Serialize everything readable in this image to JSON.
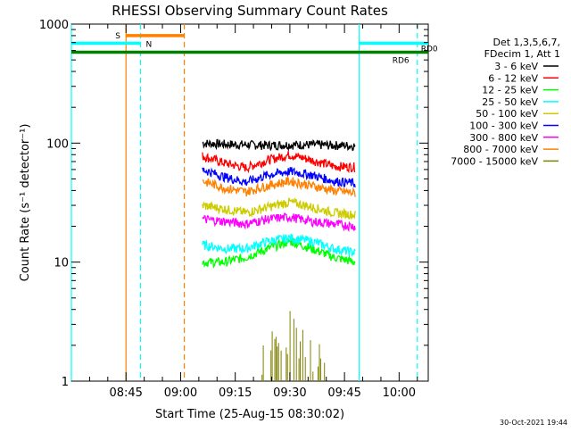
{
  "chart_data": {
    "type": "line",
    "title": "RHESSI Observing Summary Count Rates",
    "xlabel": "Start Time (25-Aug-15 08:30:02)",
    "ylabel": "Count Rate (s⁻¹ detector⁻¹)",
    "yscale": "log",
    "ylim": [
      1,
      1000
    ],
    "xlim": [
      "08:30",
      "10:08"
    ],
    "grid": false,
    "x_ticks": [
      "08:45",
      "09:00",
      "09:15",
      "09:30",
      "09:45",
      "10:00"
    ],
    "y_ticks": [
      "1",
      "10",
      "100",
      "1000"
    ],
    "legend": {
      "placement": "right",
      "header": [
        "Det 1,3,5,6,7,",
        "FDecim 1, Att 1"
      ]
    },
    "series": [
      {
        "name": "3 - 6 keV",
        "color": "#000000",
        "x": [
          "09:06",
          "09:12",
          "09:18",
          "09:24",
          "09:30",
          "09:36",
          "09:42",
          "09:48"
        ],
        "y": [
          100,
          98,
          97,
          96,
          97,
          97,
          96,
          95
        ]
      },
      {
        "name": "6 - 12 keV",
        "color": "#ff0000",
        "x": [
          "09:06",
          "09:12",
          "09:18",
          "09:24",
          "09:30",
          "09:36",
          "09:42",
          "09:48"
        ],
        "y": [
          78,
          68,
          62,
          72,
          80,
          72,
          64,
          63
        ]
      },
      {
        "name": "12 - 25 keV",
        "color": "#00ff00",
        "x": [
          "09:06",
          "09:12",
          "09:18",
          "09:24",
          "09:30",
          "09:36",
          "09:42",
          "09:48"
        ],
        "y": [
          10,
          10,
          11,
          13,
          15,
          13,
          11,
          10
        ]
      },
      {
        "name": "25 - 50 keV",
        "color": "#00ffff",
        "x": [
          "09:06",
          "09:12",
          "09:18",
          "09:24",
          "09:30",
          "09:36",
          "09:42",
          "09:48"
        ],
        "y": [
          14,
          13,
          13,
          15,
          16,
          15,
          13,
          12
        ]
      },
      {
        "name": "50 - 100 keV",
        "color": "#cccc00",
        "x": [
          "09:06",
          "09:12",
          "09:18",
          "09:24",
          "09:30",
          "09:36",
          "09:42",
          "09:48"
        ],
        "y": [
          30,
          28,
          26,
          29,
          32,
          29,
          26,
          25
        ]
      },
      {
        "name": "100 - 300 keV",
        "color": "#0000ff",
        "x": [
          "09:06",
          "09:12",
          "09:18",
          "09:24",
          "09:30",
          "09:36",
          "09:42",
          "09:48"
        ],
        "y": [
          60,
          52,
          47,
          54,
          58,
          54,
          48,
          46
        ]
      },
      {
        "name": "300 - 800 keV",
        "color": "#ff00ff",
        "x": [
          "09:06",
          "09:12",
          "09:18",
          "09:24",
          "09:30",
          "09:36",
          "09:42",
          "09:48"
        ],
        "y": [
          23,
          22,
          21,
          23,
          24,
          22,
          21,
          20
        ]
      },
      {
        "name": "800 - 7000 keV",
        "color": "#ff8000",
        "x": [
          "09:06",
          "09:12",
          "09:18",
          "09:24",
          "09:30",
          "09:36",
          "09:42",
          "09:48"
        ],
        "y": [
          48,
          42,
          39,
          44,
          48,
          44,
          40,
          38
        ]
      },
      {
        "name": "7000 - 15000 keV",
        "color": "#808000",
        "x": [
          "09:22",
          "09:24",
          "09:26",
          "09:28",
          "09:30",
          "09:32",
          "09:34",
          "09:36",
          "09:38",
          "09:40"
        ],
        "y": [
          1.6,
          2.0,
          1.8,
          2.4,
          2.8,
          2.2,
          1.9,
          1.6,
          1.5,
          1.4
        ]
      }
    ],
    "flag_bars": [
      {
        "label": "S",
        "color": "#ff8000",
        "start": "08:45",
        "end": "09:01",
        "level": 800
      },
      {
        "label": "N",
        "color": "#00ffff",
        "start": "08:30",
        "end": "08:49",
        "level": 690
      },
      {
        "label": "",
        "color": "#00ffff",
        "start": "09:49",
        "end": "10:08",
        "level": 690
      },
      {
        "label": "RD6",
        "color": "#008000",
        "start": "08:30",
        "end": "10:08",
        "level": 580
      },
      {
        "label": "RD0",
        "color": "#008000",
        "start": "10:05",
        "end": "10:05",
        "level": 620
      }
    ],
    "vertical_lines": [
      {
        "x": "08:30",
        "color": "#00ffff",
        "style": "solid"
      },
      {
        "x": "08:45",
        "color": "#ff8000",
        "style": "solid"
      },
      {
        "x": "08:49",
        "color": "#00ffff",
        "style": "dashed"
      },
      {
        "x": "09:01",
        "color": "#ff8000",
        "style": "dashed"
      },
      {
        "x": "09:49",
        "color": "#00ffff",
        "style": "solid"
      },
      {
        "x": "10:05",
        "color": "#00ffff",
        "style": "dashed"
      }
    ]
  },
  "footer": {
    "timestamp": "30-Oct-2021 19:44"
  }
}
